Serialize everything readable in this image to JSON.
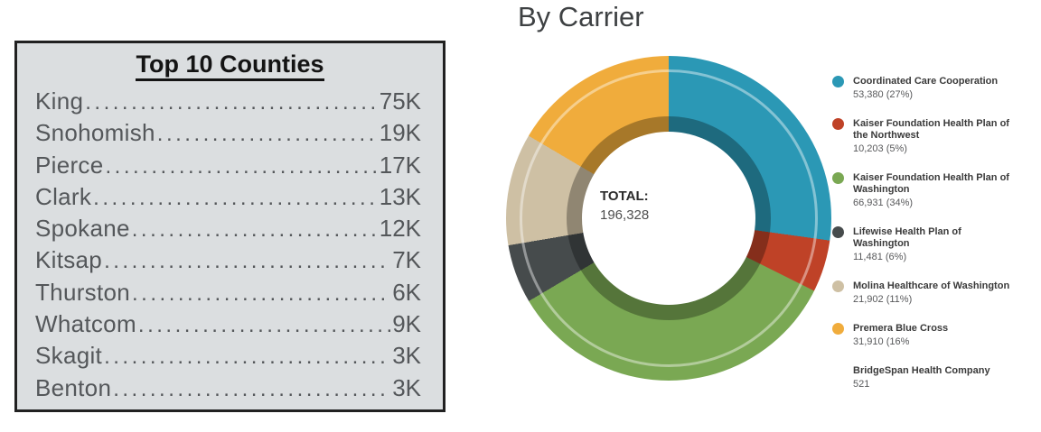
{
  "chart_data": [
    {
      "type": "table",
      "title": "Top 10 Counties",
      "categories": [
        "King",
        "Snohomish",
        "Pierce",
        "Clark",
        "Spokane",
        "Kitsap",
        "Thurston",
        "Whatcom",
        "Skagit",
        "Benton"
      ],
      "values": [
        "75K",
        "19K",
        "17K",
        "13K",
        "12K",
        "7K",
        "6K",
        "9K",
        "3K",
        "3K"
      ]
    },
    {
      "type": "pie",
      "donut": true,
      "title": "By Carrier",
      "center_label": "TOTAL:",
      "center_value": "196,328",
      "total": 196328,
      "legend_position": "right",
      "slices": [
        {
          "label": "Coordinated Care Cooperation",
          "value": 53380,
          "pct": 27,
          "color": "#2b98b5",
          "value_label": "53,380 (27%)"
        },
        {
          "label": "Kaiser Foundation Health Plan of the Northwest",
          "value": 10203,
          "pct": 5,
          "color": "#bf4227",
          "value_label": "10,203 (5%)"
        },
        {
          "label": "Kaiser Foundation Health Plan of Washington",
          "value": 66931,
          "pct": 34,
          "color": "#7aa853",
          "value_label": "66,931 (34%)"
        },
        {
          "label": "Lifewise Health Plan of Washington",
          "value": 11481,
          "pct": 6,
          "color": "#464b4c",
          "value_label": "11,481 (6%)"
        },
        {
          "label": "Molina Healthcare of Washington",
          "value": 21902,
          "pct": 11,
          "color": "#cec0a4",
          "value_label": "21,902 (11%)"
        },
        {
          "label": "Premera Blue Cross",
          "value": 31910,
          "pct": 16,
          "color": "#f0ac3c",
          "value_label": "31,910 (16%"
        },
        {
          "label": "BridgeSpan Health Company",
          "value": 521,
          "pct": null,
          "color": null,
          "value_label": "521"
        }
      ]
    }
  ]
}
